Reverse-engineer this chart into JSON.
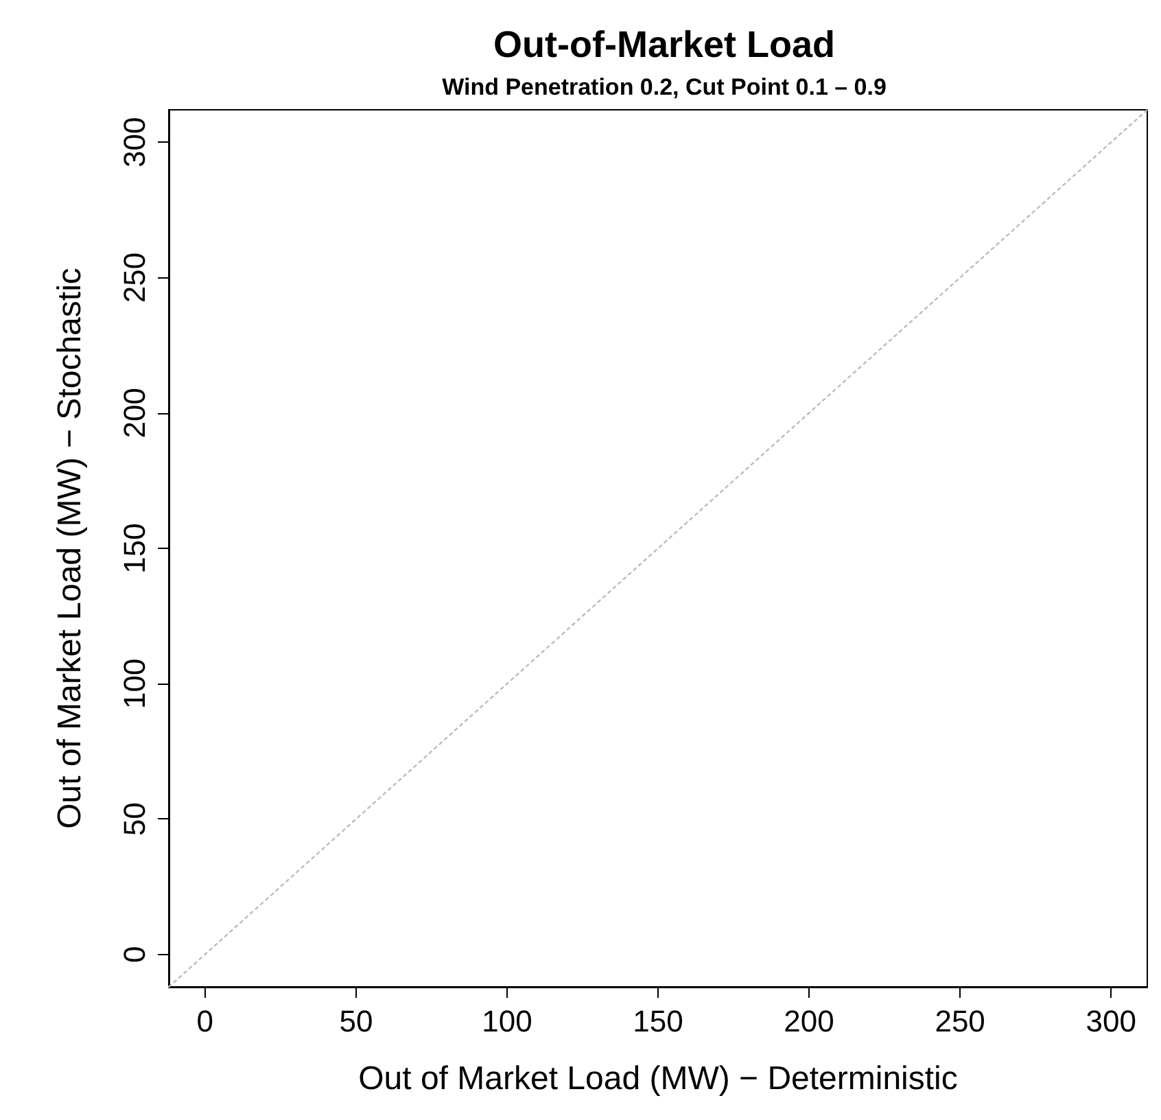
{
  "chart_data": {
    "type": "line",
    "title": "Out-of-Market Load",
    "subtitle": "Wind Penetration 0.2, Cut Point 0.1 – 0.9",
    "xlabel": "Out of Market Load (MW) − Deterministic",
    "ylabel": "Out of Market Load (MW) − Stochastic",
    "series": [
      {
        "x": [
          -12,
          312
        ],
        "values": [
          -12,
          312
        ],
        "color": "#bbbbbb"
      }
    ],
    "xlim": [
      -12,
      312
    ],
    "ylim": [
      -12,
      312
    ],
    "xticks": [
      0,
      50,
      100,
      150,
      200,
      250,
      300
    ],
    "yticks": [
      0,
      50,
      100,
      150,
      200,
      250,
      300
    ],
    "marker": "none",
    "line_style": "dotted"
  }
}
